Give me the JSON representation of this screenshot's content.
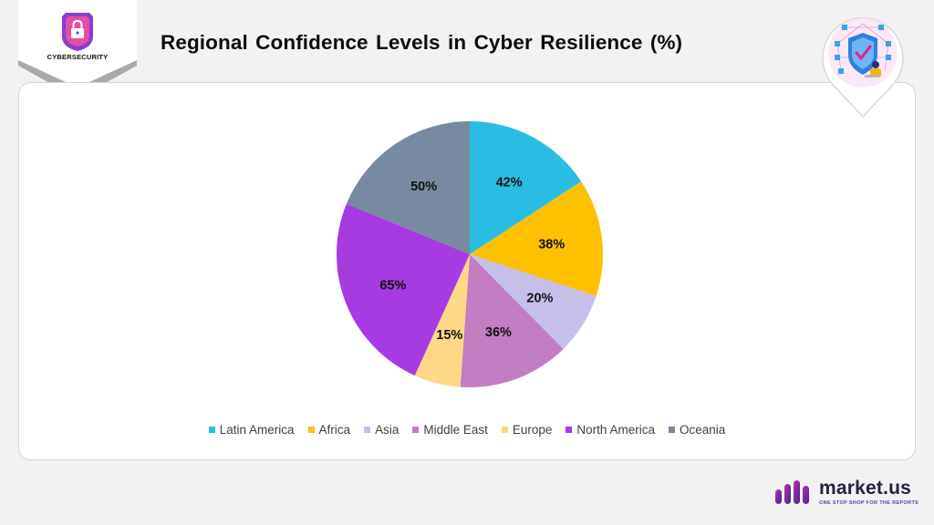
{
  "badge": {
    "label": "CYBERSECURITY",
    "icon": "lock-icon"
  },
  "header": {
    "title": "Regional Confidence Levels in Cyber Resilience (%)"
  },
  "hero_icon": "shield-check-icon",
  "colors": {
    "Latin America": "#29bde4",
    "Africa": "#ffc000",
    "Asia": "#c6bfea",
    "Middle East": "#c17ec1",
    "Europe": "#fed787",
    "North America": "#a83ae2",
    "Oceania": "#778a9f"
  },
  "chart_data": {
    "type": "pie",
    "title": "Regional Confidence Levels in Cyber Resilience (%)",
    "categories": [
      "Latin America",
      "Africa",
      "Asia",
      "Middle East",
      "Europe",
      "North America",
      "Oceania"
    ],
    "values": [
      42,
      38,
      20,
      36,
      15,
      65,
      50
    ],
    "labels": [
      "42%",
      "38%",
      "20%",
      "36%",
      "15%",
      "65%",
      "50%"
    ],
    "legend_position": "bottom"
  },
  "brand": {
    "name": "market.us",
    "tagline": "ONE STOP SHOP FOR THE REPORTS"
  }
}
